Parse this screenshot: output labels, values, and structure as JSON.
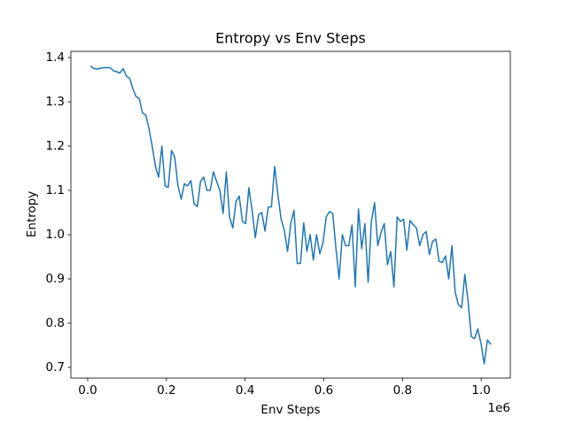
{
  "chart_data": {
    "type": "line",
    "title": "Entropy vs Env Steps",
    "x_label": "Env Steps",
    "y_label": "Entropy",
    "x_offset_label": "1e6",
    "x": [
      8192,
      16384,
      24576,
      32768,
      40960,
      49152,
      57344,
      65536,
      73728,
      81920,
      90112,
      98304,
      106496,
      114688,
      122880,
      131072,
      139264,
      147456,
      155648,
      163840,
      172032,
      180224,
      188416,
      196608,
      204800,
      212992,
      221184,
      229376,
      237568,
      245760,
      253952,
      262144,
      270336,
      278528,
      286720,
      294912,
      303104,
      311296,
      319488,
      327680,
      335872,
      344064,
      352256,
      360448,
      368640,
      376832,
      385024,
      393216,
      401408,
      409600,
      417792,
      425984,
      434176,
      442368,
      450560,
      458752,
      466944,
      475136,
      483328,
      491520,
      499712,
      507904,
      516096,
      524288,
      532480,
      540672,
      548864,
      557056,
      565248,
      573440,
      581632,
      589824,
      598016,
      606208,
      614400,
      622592,
      630784,
      638976,
      647168,
      655360,
      663552,
      671744,
      679936,
      688128,
      696320,
      704512,
      712704,
      720896,
      729088,
      737280,
      745472,
      753664,
      761856,
      770048,
      778240,
      786432,
      794624,
      802816,
      811008,
      819200,
      827392,
      835584,
      843776,
      851968,
      860160,
      868352,
      876544,
      884736,
      892928,
      901120,
      909312,
      917504,
      925696,
      933888,
      942080,
      950272,
      958464,
      966656,
      974848,
      983040,
      991232,
      999424,
      1007616,
      1015808,
      1024000
    ],
    "series": [
      {
        "name": "Entropy",
        "color": "#1f77b4",
        "values": [
          1.38,
          1.375,
          1.374,
          1.376,
          1.377,
          1.377,
          1.377,
          1.37,
          1.368,
          1.365,
          1.375,
          1.358,
          1.353,
          1.33,
          1.312,
          1.307,
          1.275,
          1.27,
          1.24,
          1.2,
          1.155,
          1.13,
          1.2,
          1.11,
          1.107,
          1.19,
          1.175,
          1.11,
          1.08,
          1.115,
          1.11,
          1.122,
          1.07,
          1.063,
          1.12,
          1.13,
          1.1,
          1.1,
          1.142,
          1.12,
          1.1,
          1.048,
          1.142,
          1.04,
          1.015,
          1.075,
          1.087,
          1.03,
          1.025,
          1.106,
          1.055,
          0.993,
          1.045,
          1.05,
          1.008,
          1.062,
          1.063,
          1.154,
          1.09,
          1.035,
          1.01,
          0.962,
          1.025,
          1.055,
          0.935,
          0.935,
          1.027,
          0.962,
          1.0,
          0.943,
          1.0,
          0.957,
          0.982,
          1.04,
          1.052,
          1.048,
          0.97,
          0.9,
          1.0,
          0.975,
          0.975,
          1.022,
          0.882,
          1.058,
          0.968,
          1.025,
          0.892,
          1.03,
          1.072,
          0.975,
          1.005,
          1.025,
          0.932,
          0.962,
          0.882,
          1.04,
          1.03,
          1.035,
          0.965,
          1.032,
          1.022,
          1.015,
          0.975,
          1.0,
          1.007,
          0.955,
          0.985,
          0.99,
          0.94,
          0.937,
          0.952,
          0.9,
          0.975,
          0.87,
          0.842,
          0.835,
          0.91,
          0.85,
          0.77,
          0.765,
          0.787,
          0.755,
          0.708,
          0.762,
          0.753
        ]
      }
    ],
    "xlim": [
      -42800,
      1074000
    ],
    "ylim": [
      0.676,
      1.414
    ],
    "xticks": [
      {
        "value": 0,
        "label": "0.0"
      },
      {
        "value": 200000,
        "label": "0.2"
      },
      {
        "value": 400000,
        "label": "0.4"
      },
      {
        "value": 600000,
        "label": "0.6"
      },
      {
        "value": 800000,
        "label": "0.8"
      },
      {
        "value": 1000000,
        "label": "1.0"
      }
    ],
    "yticks": [
      0.7,
      0.8,
      0.9,
      {
        "value": 1.0,
        "label": "1.0"
      },
      1.1,
      1.2,
      1.3,
      1.4
    ],
    "grid": false
  }
}
